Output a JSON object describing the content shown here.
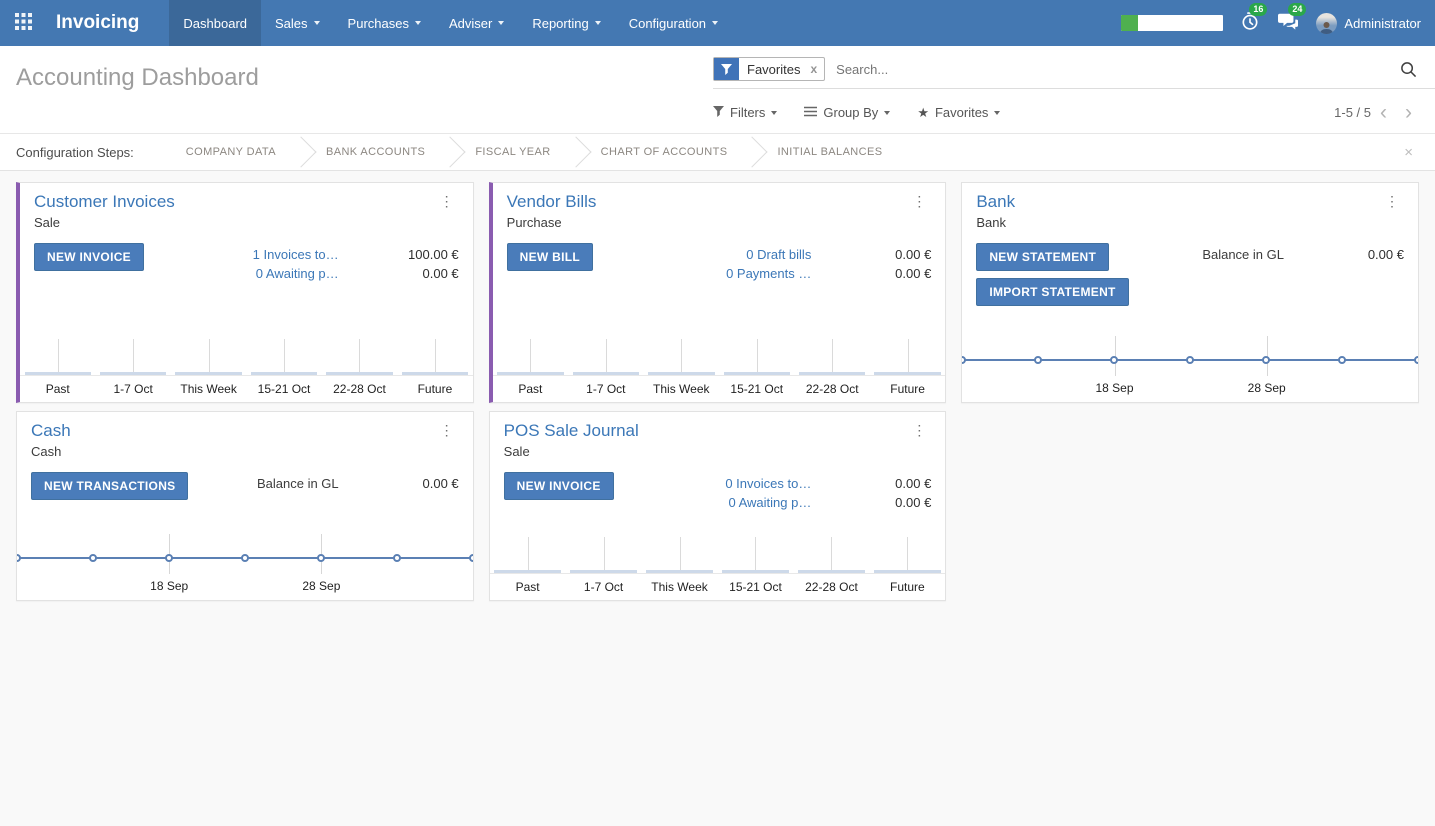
{
  "navbar": {
    "brand": "Invoicing",
    "menus": [
      {
        "label": "Dashboard",
        "active": true,
        "dropdown": false
      },
      {
        "label": "Sales",
        "active": false,
        "dropdown": true
      },
      {
        "label": "Purchases",
        "active": false,
        "dropdown": true
      },
      {
        "label": "Adviser",
        "active": false,
        "dropdown": true
      },
      {
        "label": "Reporting",
        "active": false,
        "dropdown": true
      },
      {
        "label": "Configuration",
        "active": false,
        "dropdown": true
      }
    ],
    "progress_percent": 16,
    "activity_badge": "16",
    "message_badge": "24",
    "user_name": "Administrator"
  },
  "control_panel": {
    "title": "Accounting Dashboard",
    "search": {
      "facet_label": "Favorites",
      "remove_label": "x",
      "placeholder": "Search..."
    },
    "filter_buttons": [
      {
        "label": "Filters"
      },
      {
        "label": "Group By"
      },
      {
        "label": "Favorites"
      }
    ],
    "pager": {
      "text": "1-5 / 5"
    }
  },
  "config_steps": {
    "label": "Configuration Steps:",
    "steps": [
      "COMPANY DATA",
      "BANK ACCOUNTS",
      "FISCAL YEAR",
      "CHART OF ACCOUNTS",
      "INITIAL BALANCES"
    ],
    "close_label": "×"
  },
  "colors": {
    "navbar_bg": "#4478b2",
    "navbar_active": "#3b6899",
    "primary_button": "#4a7cba",
    "link_blue": "#3b77b7",
    "card_stripe_purple": "#8a5cb0",
    "badge_green": "#2aa74a",
    "progress_green": "#4fb04f",
    "chart_line_blue": "#5b80b4",
    "chart_bar_fill": "#cdd9e9"
  },
  "cards": [
    {
      "id": "customer-invoices",
      "title": "Customer Invoices",
      "subtitle": "Sale",
      "stripe": true,
      "buttons": [
        {
          "label": "NEW INVOICE"
        }
      ],
      "stats": [
        {
          "link": "1 Invoices to…",
          "value": "100.00 €"
        },
        {
          "link": "0 Awaiting p…",
          "value": "0.00 €"
        }
      ],
      "chart": {
        "type": "bar",
        "categories": [
          "Past",
          "1-7 Oct",
          "This Week",
          "15-21 Oct",
          "22-28 Oct",
          "Future"
        ],
        "values": [
          0,
          0,
          0,
          0,
          0,
          0
        ]
      }
    },
    {
      "id": "vendor-bills",
      "title": "Vendor Bills",
      "subtitle": "Purchase",
      "stripe": true,
      "buttons": [
        {
          "label": "NEW BILL"
        }
      ],
      "stats": [
        {
          "link": "0 Draft bills",
          "value": "0.00 €"
        },
        {
          "link": "0 Payments …",
          "value": "0.00 €"
        }
      ],
      "chart": {
        "type": "bar",
        "categories": [
          "Past",
          "1-7 Oct",
          "This Week",
          "15-21 Oct",
          "22-28 Oct",
          "Future"
        ],
        "values": [
          0,
          0,
          0,
          0,
          0,
          0
        ]
      }
    },
    {
      "id": "bank",
      "title": "Bank",
      "subtitle": "Bank",
      "stripe": false,
      "buttons": [
        {
          "label": "NEW STATEMENT"
        },
        {
          "label": "IMPORT STATEMENT"
        }
      ],
      "stats": [
        {
          "label": "Balance in GL",
          "value": "0.00 €"
        }
      ],
      "chart": {
        "type": "line",
        "x_labels": [
          "18 Sep",
          "28 Sep"
        ],
        "values": [
          0,
          0,
          0,
          0,
          0,
          0,
          0
        ]
      }
    },
    {
      "id": "cash",
      "title": "Cash",
      "subtitle": "Cash",
      "stripe": false,
      "buttons": [
        {
          "label": "NEW TRANSACTIONS"
        }
      ],
      "stats": [
        {
          "label": "Balance in GL",
          "value": "0.00 €"
        }
      ],
      "chart": {
        "type": "line",
        "x_labels": [
          "18 Sep",
          "28 Sep"
        ],
        "values": [
          0,
          0,
          0,
          0,
          0,
          0,
          0
        ]
      }
    },
    {
      "id": "pos-sale-journal",
      "title": "POS Sale Journal",
      "subtitle": "Sale",
      "stripe": false,
      "buttons": [
        {
          "label": "NEW INVOICE"
        }
      ],
      "stats": [
        {
          "link": "0 Invoices to…",
          "value": "0.00 €"
        },
        {
          "link": "0 Awaiting p…",
          "value": "0.00 €"
        }
      ],
      "chart": {
        "type": "bar",
        "categories": [
          "Past",
          "1-7 Oct",
          "This Week",
          "15-21 Oct",
          "22-28 Oct",
          "Future"
        ],
        "values": [
          0,
          0,
          0,
          0,
          0,
          0
        ]
      }
    }
  ]
}
